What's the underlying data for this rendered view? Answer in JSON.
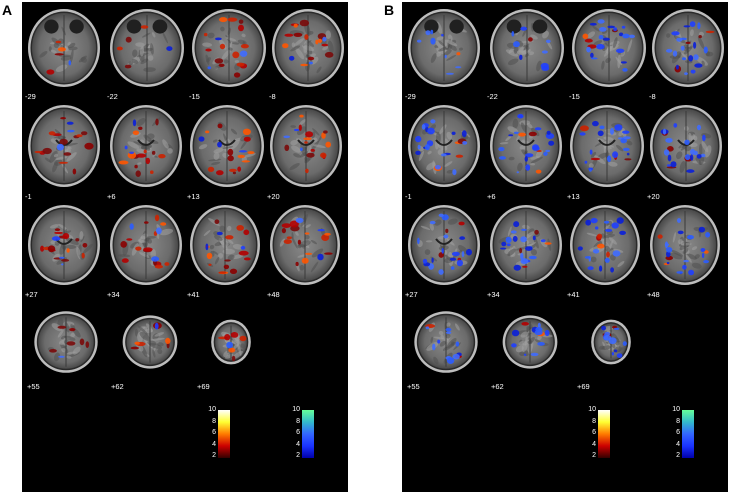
{
  "panels": [
    {
      "letter": "A",
      "slices": [
        "-29",
        "-22",
        "-15",
        "-8",
        "-1",
        "+6",
        "+13",
        "+20",
        "+27",
        "+34",
        "+41",
        "+48",
        "+55",
        "+62",
        "+69"
      ],
      "hot_colorbar": {
        "ticks": [
          "10",
          "8",
          "6",
          "4",
          "2"
        ],
        "colors": [
          "#ffffff",
          "#ffff33",
          "#ff7a00",
          "#cc0000",
          "#330000"
        ]
      },
      "cool_colorbar": {
        "ticks": [
          "10",
          "8",
          "6",
          "4",
          "2"
        ],
        "colors": [
          "#66ff99",
          "#33bbcc",
          "#3366ff",
          "#1a33ff",
          "#0000aa"
        ]
      }
    },
    {
      "letter": "B",
      "slices": [
        "-29",
        "-22",
        "-15",
        "-8",
        "-1",
        "+6",
        "+13",
        "+20",
        "+27",
        "+34",
        "+41",
        "+48",
        "+55",
        "+62",
        "+69"
      ],
      "hot_colorbar": {
        "ticks": [
          "10",
          "8",
          "6",
          "4",
          "2"
        ],
        "colors": [
          "#ffffff",
          "#ffff33",
          "#ff7a00",
          "#cc0000",
          "#330000"
        ]
      },
      "cool_colorbar": {
        "ticks": [
          "10",
          "8",
          "6",
          "4",
          "2"
        ],
        "colors": [
          "#66ff99",
          "#33bbcc",
          "#3366ff",
          "#1a33ff",
          "#0000aa"
        ]
      }
    }
  ]
}
